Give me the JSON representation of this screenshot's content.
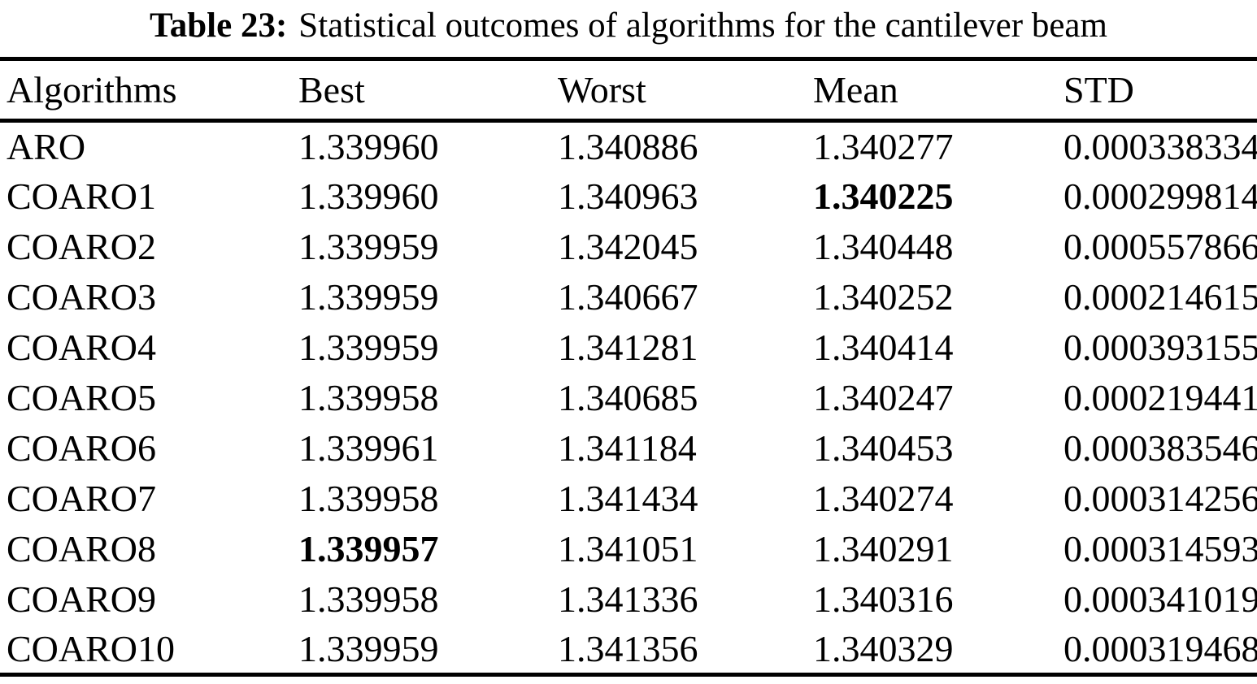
{
  "caption": {
    "label": "Table 23:",
    "text": "Statistical outcomes of algorithms for the cantilever beam"
  },
  "table": {
    "columns": [
      "Algorithms",
      "Best",
      "Worst",
      "Mean",
      "STD"
    ],
    "rows": [
      {
        "cells": [
          {
            "text": "ARO",
            "bold": false
          },
          {
            "text": "1.339960",
            "bold": false
          },
          {
            "text": "1.340886",
            "bold": false
          },
          {
            "text": "1.340277",
            "bold": false
          },
          {
            "text": "0.000338334",
            "bold": false
          }
        ]
      },
      {
        "cells": [
          {
            "text": "COARO1",
            "bold": false
          },
          {
            "text": "1.339960",
            "bold": false
          },
          {
            "text": "1.340963",
            "bold": false
          },
          {
            "text": "1.340225",
            "bold": true
          },
          {
            "text": "0.000299814",
            "bold": false
          }
        ]
      },
      {
        "cells": [
          {
            "text": "COARO2",
            "bold": false
          },
          {
            "text": "1.339959",
            "bold": false
          },
          {
            "text": "1.342045",
            "bold": false
          },
          {
            "text": "1.340448",
            "bold": false
          },
          {
            "text": "0.000557866",
            "bold": false
          }
        ]
      },
      {
        "cells": [
          {
            "text": "COARO3",
            "bold": false
          },
          {
            "text": "1.339959",
            "bold": false
          },
          {
            "text": "1.340667",
            "bold": false
          },
          {
            "text": "1.340252",
            "bold": false
          },
          {
            "text": "0.000214615",
            "bold": false
          }
        ]
      },
      {
        "cells": [
          {
            "text": "COARO4",
            "bold": false
          },
          {
            "text": "1.339959",
            "bold": false
          },
          {
            "text": "1.341281",
            "bold": false
          },
          {
            "text": "1.340414",
            "bold": false
          },
          {
            "text": "0.000393155",
            "bold": false
          }
        ]
      },
      {
        "cells": [
          {
            "text": "COARO5",
            "bold": false
          },
          {
            "text": "1.339958",
            "bold": false
          },
          {
            "text": "1.340685",
            "bold": false
          },
          {
            "text": "1.340247",
            "bold": false
          },
          {
            "text": "0.000219441",
            "bold": false
          }
        ]
      },
      {
        "cells": [
          {
            "text": "COARO6",
            "bold": false
          },
          {
            "text": "1.339961",
            "bold": false
          },
          {
            "text": "1.341184",
            "bold": false
          },
          {
            "text": "1.340453",
            "bold": false
          },
          {
            "text": "0.000383546",
            "bold": false
          }
        ]
      },
      {
        "cells": [
          {
            "text": "COARO7",
            "bold": false
          },
          {
            "text": "1.339958",
            "bold": false
          },
          {
            "text": "1.341434",
            "bold": false
          },
          {
            "text": "1.340274",
            "bold": false
          },
          {
            "text": "0.000314256",
            "bold": false
          }
        ]
      },
      {
        "cells": [
          {
            "text": "COARO8",
            "bold": false
          },
          {
            "text": "1.339957",
            "bold": true
          },
          {
            "text": "1.341051",
            "bold": false
          },
          {
            "text": "1.340291",
            "bold": false
          },
          {
            "text": "0.000314593",
            "bold": false
          }
        ]
      },
      {
        "cells": [
          {
            "text": "COARO9",
            "bold": false
          },
          {
            "text": "1.339958",
            "bold": false
          },
          {
            "text": "1.341336",
            "bold": false
          },
          {
            "text": "1.340316",
            "bold": false
          },
          {
            "text": "0.000341019",
            "bold": false
          }
        ]
      },
      {
        "cells": [
          {
            "text": "COARO10",
            "bold": false
          },
          {
            "text": "1.339959",
            "bold": false
          },
          {
            "text": "1.341356",
            "bold": false
          },
          {
            "text": "1.340329",
            "bold": false
          },
          {
            "text": "0.000319468",
            "bold": false
          }
        ]
      }
    ]
  },
  "colors": {
    "text": "#000000",
    "background": "#ffffff",
    "rule": "#000000"
  }
}
